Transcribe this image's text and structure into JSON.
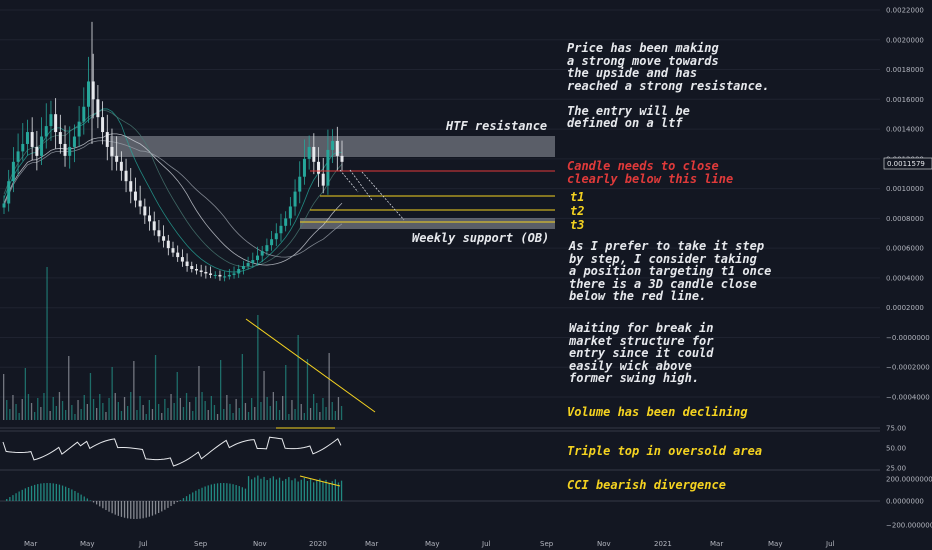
{
  "chart_data": {
    "type": "candlestick",
    "price_axis_labels": [
      "0.0022000",
      "0.0020000",
      "0.0018000",
      "0.0016000",
      "0.0014000",
      "0.0012000",
      "0.0010000",
      "0.0008000",
      "0.0006000",
      "0.0004000",
      "0.0002000",
      "−0.0000000",
      "−0.0002000",
      "−0.0004000"
    ],
    "rsi_axis_labels": [
      "75.00",
      "50.00",
      "25.00"
    ],
    "cci_axis_labels": [
      "200.0000000",
      "0.0000000",
      "−200.0000000"
    ],
    "current_price": "0.0011579",
    "time_labels": [
      "Mar",
      "May",
      "Jul",
      "Sep",
      "Nov",
      "2020",
      "Mar",
      "May",
      "Jul",
      "Sep",
      "Nov",
      "2021",
      "Mar",
      "May",
      "Jul"
    ],
    "close_prices": [
      0.0009,
      0.00105,
      0.00118,
      0.00125,
      0.0013,
      0.00138,
      0.00128,
      0.00122,
      0.00135,
      0.00142,
      0.0015,
      0.00138,
      0.0013,
      0.00122,
      0.00128,
      0.00135,
      0.00145,
      0.00155,
      0.00172,
      0.0016,
      0.00148,
      0.00138,
      0.00128,
      0.00122,
      0.00118,
      0.00112,
      0.00105,
      0.00098,
      0.00092,
      0.00088,
      0.00082,
      0.00078,
      0.00072,
      0.00068,
      0.00065,
      0.0006,
      0.00057,
      0.00054,
      0.00051,
      0.00048,
      0.00046,
      0.00045,
      0.00044,
      0.00043,
      0.00042,
      0.00042,
      0.00041,
      0.00041,
      0.00042,
      0.00043,
      0.00046,
      0.00048,
      0.0005,
      0.00052,
      0.00055,
      0.00058,
      0.00062,
      0.00066,
      0.0007,
      0.00075,
      0.0008,
      0.00088,
      0.00098,
      0.00108,
      0.0012,
      0.00128,
      0.00118,
      0.0011,
      0.00102,
      0.00126,
      0.00132,
      0.00122,
      0.00118
    ],
    "annotations": {
      "htf_resistance": "HTF resistance",
      "weekly_support": "Weekly support (OB)",
      "t1": "t1",
      "t2": "t2",
      "t3": "t3",
      "note_main": "Price has been making\na strong move towards\nthe upside and has\nreached a strong resistance.\n\nThe entry will be\ndefined on a ltf",
      "note_red": "Candle needs to close\nclearly below this line",
      "note_step": "As I prefer to take it step\nby step, I consider taking\na position targeting t1 once\nthere is a 3D candle close\nbelow the red line.",
      "note_wait": "Waiting for break in\nmarket structure for\nentry since it could\neasily wick above\nformer swing high.",
      "note_volume": "Volume has been declining",
      "note_rsi": "Triple top in oversold area",
      "note_cci": "CCI bearish divergence"
    },
    "levels": {
      "red_line": 0.00115,
      "t1": 0.00095,
      "t2": 0.00086,
      "t3": 0.00078,
      "resistance_zone": [
        0.00122,
        0.00136
      ],
      "support_zone": [
        0.00076,
        0.00081
      ]
    },
    "colors": {
      "up": "#26a69a",
      "down": "#e6e8ec",
      "red_line": "#e03a3a",
      "target_line": "#f5d320",
      "zone": "#b2b5be"
    }
  }
}
